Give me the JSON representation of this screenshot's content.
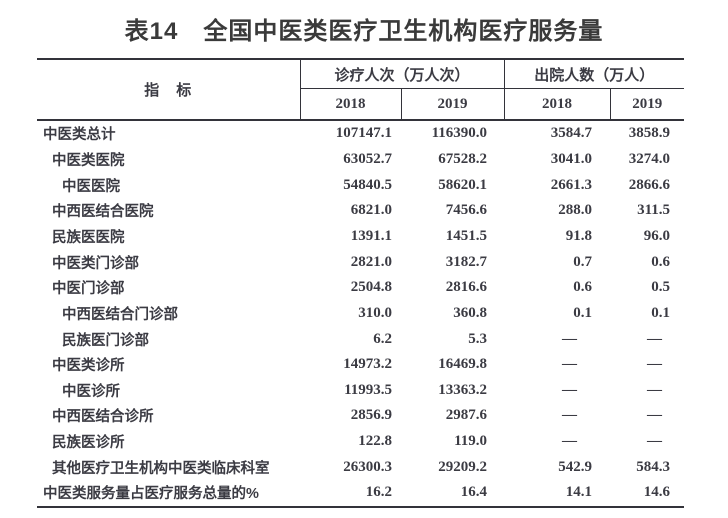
{
  "title": "表14　全国中医类医疗卫生机构医疗服务量",
  "colors": {
    "ink": "#3b3b43",
    "line": "#33333a",
    "background": "#ffffff"
  },
  "table": {
    "indicator_header": "指　标",
    "group_headers": [
      {
        "label": "诊疗人次（万人次）"
      },
      {
        "label": "出院人数（万人）"
      }
    ],
    "year_headers": [
      "2018",
      "2019",
      "2018",
      "2019"
    ],
    "rows": [
      {
        "label": "中医类总计",
        "indent": 0,
        "values": [
          "107147.1",
          "116390.0",
          "3584.7",
          "3858.9"
        ]
      },
      {
        "label": "中医类医院",
        "indent": 1,
        "values": [
          "63052.7",
          "67528.2",
          "3041.0",
          "3274.0"
        ]
      },
      {
        "label": "中医医院",
        "indent": 2,
        "values": [
          "54840.5",
          "58620.1",
          "2661.3",
          "2866.6"
        ]
      },
      {
        "label": "中西医结合医院",
        "indent": 1,
        "values": [
          "6821.0",
          "7456.6",
          "288.0",
          "311.5"
        ]
      },
      {
        "label": "民族医医院",
        "indent": 1,
        "values": [
          "1391.1",
          "1451.5",
          "91.8",
          "96.0"
        ]
      },
      {
        "label": "中医类门诊部",
        "indent": 1,
        "values": [
          "2821.0",
          "3182.7",
          "0.7",
          "0.6"
        ]
      },
      {
        "label": "中医门诊部",
        "indent": 1,
        "values": [
          "2504.8",
          "2816.6",
          "0.6",
          "0.5"
        ]
      },
      {
        "label": "中西医结合门诊部",
        "indent": 2,
        "values": [
          "310.0",
          "360.8",
          "0.1",
          "0.1"
        ]
      },
      {
        "label": "民族医门诊部",
        "indent": 2,
        "values": [
          "6.2",
          "5.3",
          "—",
          "—"
        ]
      },
      {
        "label": "中医类诊所",
        "indent": 1,
        "values": [
          "14973.2",
          "16469.8",
          "—",
          "—"
        ]
      },
      {
        "label": "中医诊所",
        "indent": 2,
        "values": [
          "11993.5",
          "13363.2",
          "—",
          "—"
        ]
      },
      {
        "label": "中西医结合诊所",
        "indent": 1,
        "values": [
          "2856.9",
          "2987.6",
          "—",
          "—"
        ]
      },
      {
        "label": "民族医诊所",
        "indent": 1,
        "values": [
          "122.8",
          "119.0",
          "—",
          "—"
        ]
      },
      {
        "label": "其他医疗卫生机构中医类临床科室",
        "indent": 1,
        "values": [
          "26300.3",
          "29209.2",
          "542.9",
          "584.3"
        ]
      },
      {
        "label": "中医类服务量占医疗服务总量的%",
        "indent": 0,
        "values": [
          "16.2",
          "16.4",
          "14.1",
          "14.6"
        ]
      }
    ]
  }
}
